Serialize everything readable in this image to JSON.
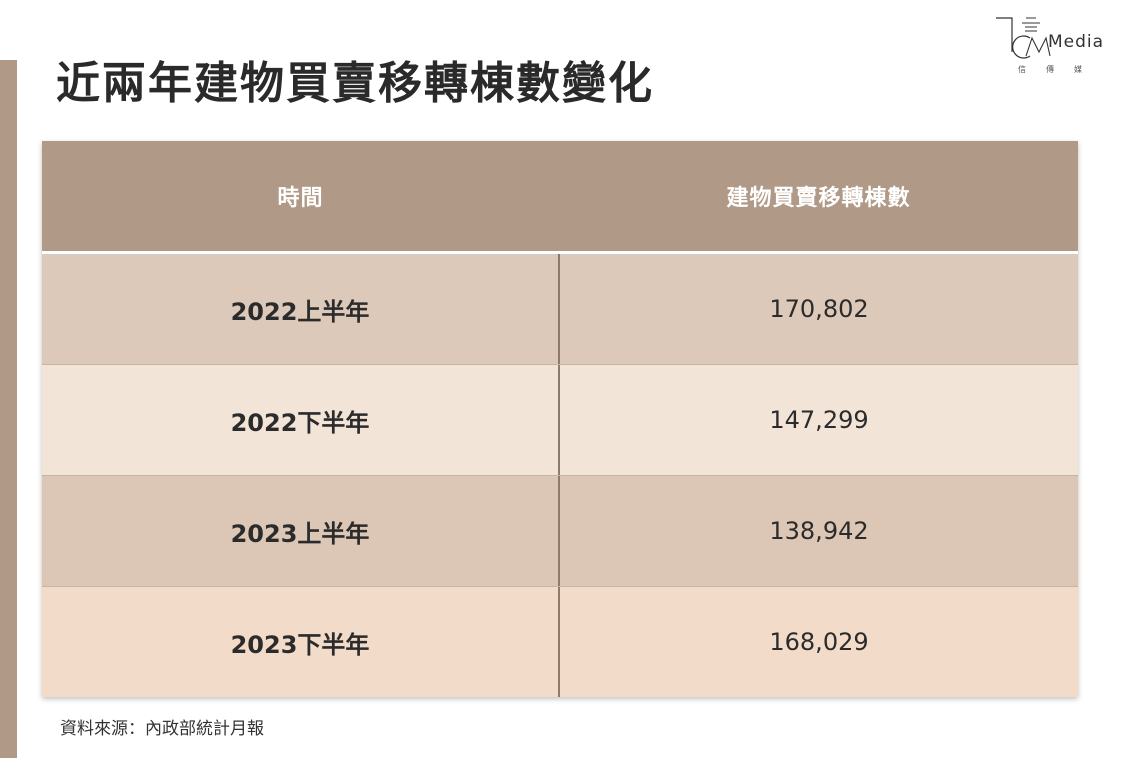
{
  "title": "近兩年建物買賣移轉棟數變化",
  "logo": {
    "wordmark": "Media",
    "sub": [
      "信",
      "傳",
      "媒"
    ]
  },
  "table": {
    "headers": [
      "時間",
      "建物買賣移轉棟數"
    ],
    "rows": [
      [
        "2022上半年",
        "170,802"
      ],
      [
        "2022下半年",
        "147,299"
      ],
      [
        "2023上半年",
        "138,942"
      ],
      [
        "2023下半年",
        "168,029"
      ]
    ]
  },
  "source": "資料來源：內政部統計月報",
  "colors": {
    "accent": "#b09a87",
    "row_dark": "#dcc9b9",
    "row_light": "#f3e4d8"
  }
}
